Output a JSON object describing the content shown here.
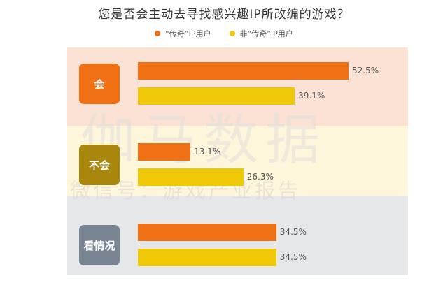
{
  "title": "您是否会主动去寻找感兴趣IP所改编的游戏？",
  "watermark": {
    "line1": "伽马数据",
    "line2": "微信号：游戏产业报告"
  },
  "colors": {
    "series1": "#F07016",
    "series2": "#EFC908",
    "band1": "#FBE2D5",
    "band2": "#FEF6DA",
    "band3": "#E6E7E9",
    "label1": "#F07016",
    "label2": "#A8870C",
    "label3": "#7A8594"
  },
  "chart_data": {
    "type": "bar",
    "orientation": "horizontal",
    "title": "您是否会主动去寻找感兴趣IP所改编的游戏？",
    "categories": [
      "会",
      "不会",
      "看情况"
    ],
    "series": [
      {
        "name": "“传奇”IP用户",
        "values": [
          52.5,
          13.1,
          34.5
        ]
      },
      {
        "name": "非“传奇”IP用户",
        "values": [
          39.1,
          26.3,
          34.5
        ]
      }
    ],
    "value_labels": [
      [
        "52.5%",
        "13.1%",
        "34.5%"
      ],
      [
        "39.1%",
        "26.3%",
        "34.5%"
      ]
    ],
    "unit": "%",
    "xlim": [
      0,
      65
    ],
    "grid": false,
    "legend_position": "top"
  }
}
